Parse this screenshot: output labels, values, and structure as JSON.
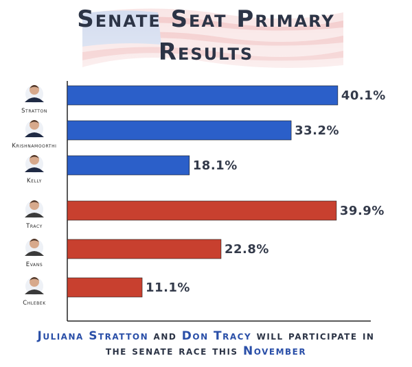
{
  "title": {
    "line1": "Senate Seat Primary",
    "line2": "Results"
  },
  "footer": {
    "name1": "Juliana Stratton",
    "and": " and ",
    "name2": "Don Tracy",
    "rest1": " will participate in",
    "line2_pre": "the senate race this ",
    "line2_hl": "November"
  },
  "colors": {
    "democrat": "#2b5fc9",
    "republican": "#c8402f",
    "title": "#2c3446",
    "highlight": "#2a4fa8"
  },
  "chart_data": {
    "type": "bar",
    "orientation": "horizontal",
    "title": "Senate Seat Primary Results",
    "xlim": [
      0,
      45
    ],
    "grid": false,
    "categories": [
      "Stratton",
      "Krishnamoorthi",
      "Kelly",
      "Tracy",
      "Evans",
      "Chlebek"
    ],
    "values": [
      40.1,
      33.2,
      18.1,
      39.9,
      22.8,
      11.1
    ],
    "value_labels": [
      "40.1%",
      "33.2%",
      "18.1%",
      "39.9%",
      "22.8%",
      "11.1%"
    ],
    "party": [
      "democrat",
      "democrat",
      "democrat",
      "republican",
      "republican",
      "republican"
    ]
  }
}
